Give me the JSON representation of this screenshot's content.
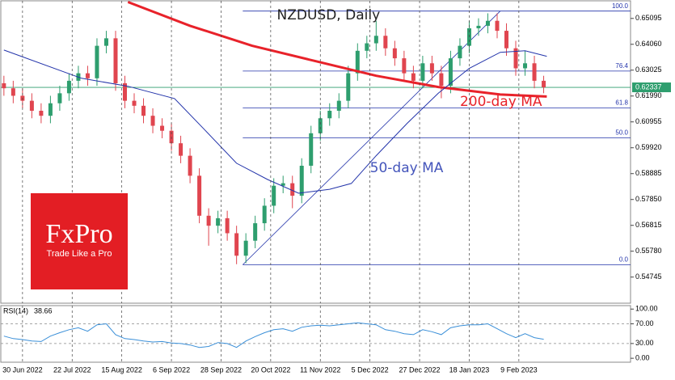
{
  "chart_data": {
    "type": "candlestick",
    "title": "NZDUSD, Daily",
    "up_color": "#2e9e6e",
    "down_color": "#e0454f",
    "x": [
      0,
      3,
      6,
      9,
      12,
      15,
      18,
      21,
      24,
      27,
      30,
      33,
      36,
      39,
      42,
      45,
      48,
      51,
      54,
      57,
      60,
      63,
      66,
      69,
      72,
      75,
      78,
      81,
      84,
      87,
      90,
      93,
      96,
      99,
      102,
      105,
      108,
      111,
      114,
      117,
      120,
      123,
      126,
      129,
      132,
      135,
      138,
      141,
      144,
      147,
      150,
      153,
      156,
      159,
      162,
      165,
      168,
      171,
      174
    ],
    "open": [
      0.625,
      0.623,
      0.62,
      0.618,
      0.614,
      0.612,
      0.617,
      0.621,
      0.626,
      0.629,
      0.627,
      0.64,
      0.643,
      0.625,
      0.618,
      0.616,
      0.612,
      0.608,
      0.606,
      0.601,
      0.596,
      0.588,
      0.572,
      0.568,
      0.571,
      0.565,
      0.556,
      0.562,
      0.569,
      0.576,
      0.584,
      0.585,
      0.58,
      0.592,
      0.605,
      0.611,
      0.614,
      0.618,
      0.629,
      0.638,
      0.641,
      0.644,
      0.639,
      0.635,
      0.629,
      0.626,
      0.633,
      0.629,
      0.624,
      0.635,
      0.64,
      0.647,
      0.648,
      0.65,
      0.646,
      0.639,
      0.631,
      0.633,
      0.626
    ],
    "high": [
      0.628,
      0.626,
      0.623,
      0.621,
      0.617,
      0.62,
      0.624,
      0.629,
      0.632,
      0.632,
      0.643,
      0.646,
      0.646,
      0.628,
      0.621,
      0.619,
      0.615,
      0.611,
      0.609,
      0.604,
      0.599,
      0.591,
      0.575,
      0.574,
      0.574,
      0.568,
      0.565,
      0.572,
      0.579,
      0.587,
      0.588,
      0.588,
      0.595,
      0.608,
      0.614,
      0.617,
      0.621,
      0.632,
      0.641,
      0.644,
      0.65,
      0.647,
      0.642,
      0.638,
      0.632,
      0.636,
      0.636,
      0.632,
      0.638,
      0.643,
      0.65,
      0.651,
      0.653,
      0.653,
      0.649,
      0.642,
      0.638,
      0.636,
      0.628
    ],
    "low": [
      0.62,
      0.617,
      0.615,
      0.611,
      0.609,
      0.609,
      0.614,
      0.618,
      0.623,
      0.624,
      0.624,
      0.637,
      0.622,
      0.615,
      0.613,
      0.609,
      0.605,
      0.603,
      0.598,
      0.593,
      0.585,
      0.569,
      0.56,
      0.565,
      0.562,
      0.5526,
      0.553,
      0.559,
      0.566,
      0.573,
      0.581,
      0.575,
      0.577,
      0.589,
      0.602,
      0.608,
      0.611,
      0.615,
      0.626,
      0.635,
      0.638,
      0.636,
      0.632,
      0.626,
      0.623,
      0.623,
      0.626,
      0.619,
      0.621,
      0.632,
      0.637,
      0.644,
      0.645,
      0.643,
      0.636,
      0.628,
      0.628,
      0.623,
      0.621
    ],
    "close": [
      0.623,
      0.62,
      0.618,
      0.614,
      0.612,
      0.617,
      0.621,
      0.626,
      0.629,
      0.627,
      0.64,
      0.643,
      0.625,
      0.618,
      0.616,
      0.612,
      0.608,
      0.606,
      0.601,
      0.596,
      0.588,
      0.572,
      0.568,
      0.571,
      0.565,
      0.556,
      0.562,
      0.569,
      0.576,
      0.584,
      0.585,
      0.58,
      0.592,
      0.605,
      0.611,
      0.614,
      0.618,
      0.629,
      0.638,
      0.641,
      0.644,
      0.639,
      0.635,
      0.629,
      0.626,
      0.633,
      0.629,
      0.624,
      0.635,
      0.64,
      0.647,
      0.648,
      0.65,
      0.646,
      0.639,
      0.631,
      0.633,
      0.626,
      0.6234
    ],
    "series": [
      {
        "name": "200-day MA",
        "color": "#e8222a",
        "width": 3,
        "x": [
          40,
          60,
          80,
          100,
          120,
          140,
          160,
          175
        ],
        "values": [
          0.6575,
          0.648,
          0.64,
          0.634,
          0.628,
          0.6235,
          0.6205,
          0.6197
        ]
      },
      {
        "name": "50-day MA",
        "color": "#2233aa",
        "width": 1,
        "x": [
          0,
          25,
          40,
          55,
          65,
          75,
          85,
          95,
          105,
          112,
          120,
          130,
          140,
          150,
          160,
          168,
          175
        ],
        "values": [
          0.6383,
          0.627,
          0.6238,
          0.6189,
          0.606,
          0.593,
          0.5865,
          0.581,
          0.5826,
          0.5849,
          0.596,
          0.609,
          0.621,
          0.631,
          0.6374,
          0.638,
          0.6358
        ]
      }
    ],
    "last_price": 0.62337,
    "last_price_color": "#2e9e6e",
    "fibonacci": {
      "color": "#2233aa",
      "x_start": 77,
      "x_end": 160,
      "levels": [
        {
          "value": 0.6539,
          "label": "100.0"
        },
        {
          "value": 0.6299,
          "label": "76.4"
        },
        {
          "value": 0.6151,
          "label": "61.8"
        },
        {
          "value": 0.6032,
          "label": "50.0"
        },
        {
          "value": 0.5524,
          "label": "0.0"
        }
      ]
    },
    "xlim": [
      -1,
      202
    ],
    "xticks": [
      {
        "value": 6,
        "label": "30 Jun 2022"
      },
      {
        "value": 22,
        "label": "22 Jul 2022"
      },
      {
        "value": 38,
        "label": "15 Aug 2022"
      },
      {
        "value": 54,
        "label": "6 Sep 2022"
      },
      {
        "value": 70,
        "label": "28 Sep 2022"
      },
      {
        "value": 86,
        "label": "20 Oct 2022"
      },
      {
        "value": 102,
        "label": "11 Nov 2022"
      },
      {
        "value": 118,
        "label": "5 Dec 2022"
      },
      {
        "value": 134,
        "label": "27 Dec 2022"
      },
      {
        "value": 150,
        "label": "18 Jan 2023"
      },
      {
        "value": 166,
        "label": "9 Feb 2023"
      }
    ],
    "ylim": [
      0.537,
      0.658
    ],
    "yticks": [
      0.65095,
      {
        "value": 0.6406,
        "label": "0.64060"
      },
      0.63025,
      {
        "value": 0.6199,
        "label": "0.61990"
      },
      0.60955,
      {
        "value": 0.5992,
        "label": "0.59920"
      },
      0.58885,
      {
        "value": 0.5785,
        "label": "0.57850"
      },
      0.56815,
      {
        "value": 0.5578,
        "label": "0.55780"
      },
      0.54745
    ],
    "grid": true,
    "annotations": [
      {
        "text": "NZDUSD, Daily",
        "x": 88,
        "y": 0.6522,
        "color": "#222222"
      },
      {
        "text": "200-day MA",
        "x": 147,
        "y": 0.6175,
        "color": "#e8222a"
      },
      {
        "text": "50-day MA",
        "x": 118,
        "y": 0.591,
        "color": "#4455bb"
      }
    ],
    "rsi": {
      "name": "RSI(14)",
      "color": "#3a8fd8",
      "x": [
        0,
        3,
        6,
        9,
        12,
        15,
        18,
        21,
        24,
        27,
        30,
        33,
        36,
        39,
        42,
        45,
        48,
        51,
        54,
        57,
        60,
        63,
        66,
        69,
        72,
        75,
        78,
        81,
        84,
        87,
        90,
        93,
        96,
        99,
        102,
        105,
        108,
        111,
        114,
        117,
        120,
        123,
        126,
        129,
        132,
        135,
        138,
        141,
        144,
        147,
        150,
        153,
        156,
        159,
        162,
        165,
        168,
        171,
        174
      ],
      "values": [
        45,
        40,
        38,
        35,
        34,
        45,
        52,
        58,
        62,
        55,
        68,
        70,
        48,
        40,
        38,
        35,
        33,
        34,
        31,
        30,
        27,
        22,
        24,
        32,
        30,
        22,
        35,
        44,
        52,
        58,
        60,
        55,
        63,
        66,
        67,
        66,
        68,
        70,
        72,
        70,
        68,
        58,
        55,
        50,
        48,
        58,
        54,
        48,
        62,
        66,
        68,
        68,
        70,
        60,
        50,
        42,
        50,
        42,
        38.66
      ],
      "ylim": [
        -8,
        107
      ],
      "yticks": [
        {
          "value": 100,
          "label": "100.00"
        },
        {
          "value": 70,
          "label": "70.00"
        },
        {
          "value": 30,
          "label": "30.00"
        },
        {
          "value": 0,
          "label": "0.00"
        }
      ],
      "levels": [
        70,
        30
      ]
    },
    "watermark": {
      "name": "FxPro",
      "tagline": "Trade Like a Pro",
      "color": "#e31e24"
    }
  }
}
